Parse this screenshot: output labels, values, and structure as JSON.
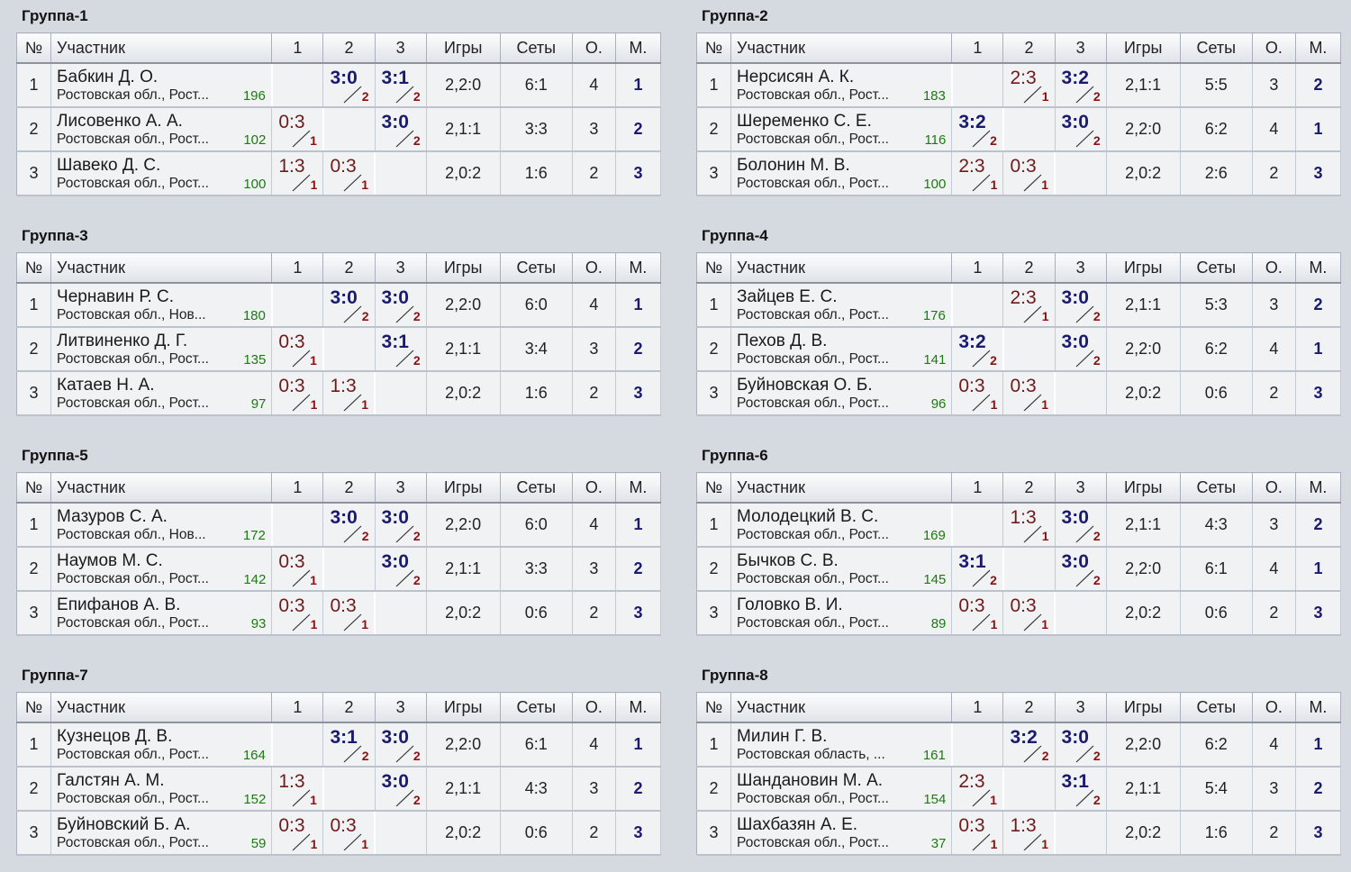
{
  "headers": {
    "num": "№",
    "name": "Участник",
    "c1": "1",
    "c2": "2",
    "c3": "3",
    "games": "Игры",
    "sets": "Сеты",
    "points": "О.",
    "place": "М."
  },
  "groups": [
    {
      "title": "Группа-1",
      "rows": [
        {
          "n": "1",
          "name": "Бабкин Д. О.",
          "city": "Ростовская обл., Рост...",
          "rating": "196",
          "results": [
            null,
            {
              "s": "3:0",
              "p": "2",
              "w": true
            },
            {
              "s": "3:1",
              "p": "2",
              "w": true
            }
          ],
          "games": "2,2:0",
          "sets": "6:1",
          "points": "4",
          "place": "1"
        },
        {
          "n": "2",
          "name": "Лисовенко А. А.",
          "city": "Ростовская обл., Рост...",
          "rating": "102",
          "results": [
            {
              "s": "0:3",
              "p": "1",
              "w": false
            },
            null,
            {
              "s": "3:0",
              "p": "2",
              "w": true
            }
          ],
          "games": "2,1:1",
          "sets": "3:3",
          "points": "3",
          "place": "2"
        },
        {
          "n": "3",
          "name": "Шавеко Д. С.",
          "city": "Ростовская обл., Рост...",
          "rating": "100",
          "results": [
            {
              "s": "1:3",
              "p": "1",
              "w": false
            },
            {
              "s": "0:3",
              "p": "1",
              "w": false
            },
            null
          ],
          "games": "2,0:2",
          "sets": "1:6",
          "points": "2",
          "place": "3"
        }
      ]
    },
    {
      "title": "Группа-2",
      "rows": [
        {
          "n": "1",
          "name": "Нерсисян А. К.",
          "city": "Ростовская обл., Рост...",
          "rating": "183",
          "results": [
            null,
            {
              "s": "2:3",
              "p": "1",
              "w": false
            },
            {
              "s": "3:2",
              "p": "2",
              "w": true
            }
          ],
          "games": "2,1:1",
          "sets": "5:5",
          "points": "3",
          "place": "2"
        },
        {
          "n": "2",
          "name": "Шеременко С. Е.",
          "city": "Ростовская обл., Рост...",
          "rating": "116",
          "results": [
            {
              "s": "3:2",
              "p": "2",
              "w": true
            },
            null,
            {
              "s": "3:0",
              "p": "2",
              "w": true
            }
          ],
          "games": "2,2:0",
          "sets": "6:2",
          "points": "4",
          "place": "1"
        },
        {
          "n": "3",
          "name": "Болонин М. В.",
          "city": "Ростовская обл., Рост...",
          "rating": "100",
          "results": [
            {
              "s": "2:3",
              "p": "1",
              "w": false
            },
            {
              "s": "0:3",
              "p": "1",
              "w": false
            },
            null
          ],
          "games": "2,0:2",
          "sets": "2:6",
          "points": "2",
          "place": "3"
        }
      ]
    },
    {
      "title": "Группа-3",
      "rows": [
        {
          "n": "1",
          "name": "Чернавин Р. С.",
          "city": "Ростовская обл., Нов...",
          "rating": "180",
          "results": [
            null,
            {
              "s": "3:0",
              "p": "2",
              "w": true
            },
            {
              "s": "3:0",
              "p": "2",
              "w": true
            }
          ],
          "games": "2,2:0",
          "sets": "6:0",
          "points": "4",
          "place": "1"
        },
        {
          "n": "2",
          "name": "Литвиненко Д. Г.",
          "city": "Ростовская обл., Рост...",
          "rating": "135",
          "results": [
            {
              "s": "0:3",
              "p": "1",
              "w": false
            },
            null,
            {
              "s": "3:1",
              "p": "2",
              "w": true
            }
          ],
          "games": "2,1:1",
          "sets": "3:4",
          "points": "3",
          "place": "2"
        },
        {
          "n": "3",
          "name": "Катаев Н. А.",
          "city": "Ростовская обл., Рост...",
          "rating": "97",
          "results": [
            {
              "s": "0:3",
              "p": "1",
              "w": false
            },
            {
              "s": "1:3",
              "p": "1",
              "w": false
            },
            null
          ],
          "games": "2,0:2",
          "sets": "1:6",
          "points": "2",
          "place": "3"
        }
      ]
    },
    {
      "title": "Группа-4",
      "rows": [
        {
          "n": "1",
          "name": "Зайцев Е. С.",
          "city": "Ростовская обл., Рост...",
          "rating": "176",
          "results": [
            null,
            {
              "s": "2:3",
              "p": "1",
              "w": false
            },
            {
              "s": "3:0",
              "p": "2",
              "w": true
            }
          ],
          "games": "2,1:1",
          "sets": "5:3",
          "points": "3",
          "place": "2"
        },
        {
          "n": "2",
          "name": "Пехов Д. В.",
          "city": "Ростовская обл., Рост...",
          "rating": "141",
          "results": [
            {
              "s": "3:2",
              "p": "2",
              "w": true
            },
            null,
            {
              "s": "3:0",
              "p": "2",
              "w": true
            }
          ],
          "games": "2,2:0",
          "sets": "6:2",
          "points": "4",
          "place": "1"
        },
        {
          "n": "3",
          "name": "Буйновская О. Б.",
          "city": "Ростовская обл., Рост...",
          "rating": "96",
          "results": [
            {
              "s": "0:3",
              "p": "1",
              "w": false
            },
            {
              "s": "0:3",
              "p": "1",
              "w": false
            },
            null
          ],
          "games": "2,0:2",
          "sets": "0:6",
          "points": "2",
          "place": "3"
        }
      ]
    },
    {
      "title": "Группа-5",
      "rows": [
        {
          "n": "1",
          "name": "Мазуров С. А.",
          "city": "Ростовская обл., Нов...",
          "rating": "172",
          "results": [
            null,
            {
              "s": "3:0",
              "p": "2",
              "w": true
            },
            {
              "s": "3:0",
              "p": "2",
              "w": true
            }
          ],
          "games": "2,2:0",
          "sets": "6:0",
          "points": "4",
          "place": "1"
        },
        {
          "n": "2",
          "name": "Наумов М. С.",
          "city": "Ростовская обл., Рост...",
          "rating": "142",
          "results": [
            {
              "s": "0:3",
              "p": "1",
              "w": false
            },
            null,
            {
              "s": "3:0",
              "p": "2",
              "w": true
            }
          ],
          "games": "2,1:1",
          "sets": "3:3",
          "points": "3",
          "place": "2"
        },
        {
          "n": "3",
          "name": "Епифанов А. В.",
          "city": "Ростовская обл., Рост...",
          "rating": "93",
          "results": [
            {
              "s": "0:3",
              "p": "1",
              "w": false
            },
            {
              "s": "0:3",
              "p": "1",
              "w": false
            },
            null
          ],
          "games": "2,0:2",
          "sets": "0:6",
          "points": "2",
          "place": "3"
        }
      ]
    },
    {
      "title": "Группа-6",
      "rows": [
        {
          "n": "1",
          "name": "Молодецкий В. С.",
          "city": "Ростовская обл., Рост...",
          "rating": "169",
          "results": [
            null,
            {
              "s": "1:3",
              "p": "1",
              "w": false
            },
            {
              "s": "3:0",
              "p": "2",
              "w": true
            }
          ],
          "games": "2,1:1",
          "sets": "4:3",
          "points": "3",
          "place": "2"
        },
        {
          "n": "2",
          "name": "Бычков С. В.",
          "city": "Ростовская обл., Рост...",
          "rating": "145",
          "results": [
            {
              "s": "3:1",
              "p": "2",
              "w": true
            },
            null,
            {
              "s": "3:0",
              "p": "2",
              "w": true
            }
          ],
          "games": "2,2:0",
          "sets": "6:1",
          "points": "4",
          "place": "1"
        },
        {
          "n": "3",
          "name": "Головко В. И.",
          "city": "Ростовская обл., Рост...",
          "rating": "89",
          "results": [
            {
              "s": "0:3",
              "p": "1",
              "w": false
            },
            {
              "s": "0:3",
              "p": "1",
              "w": false
            },
            null
          ],
          "games": "2,0:2",
          "sets": "0:6",
          "points": "2",
          "place": "3"
        }
      ]
    },
    {
      "title": "Группа-7",
      "rows": [
        {
          "n": "1",
          "name": "Кузнецов Д. В.",
          "city": "Ростовская обл., Рост...",
          "rating": "164",
          "results": [
            null,
            {
              "s": "3:1",
              "p": "2",
              "w": true
            },
            {
              "s": "3:0",
              "p": "2",
              "w": true
            }
          ],
          "games": "2,2:0",
          "sets": "6:1",
          "points": "4",
          "place": "1"
        },
        {
          "n": "2",
          "name": "Галстян А. М.",
          "city": "Ростовская обл., Рост...",
          "rating": "152",
          "results": [
            {
              "s": "1:3",
              "p": "1",
              "w": false
            },
            null,
            {
              "s": "3:0",
              "p": "2",
              "w": true
            }
          ],
          "games": "2,1:1",
          "sets": "4:3",
          "points": "3",
          "place": "2"
        },
        {
          "n": "3",
          "name": "Буйновский Б. А.",
          "city": "Ростовская обл., Рост...",
          "rating": "59",
          "results": [
            {
              "s": "0:3",
              "p": "1",
              "w": false
            },
            {
              "s": "0:3",
              "p": "1",
              "w": false
            },
            null
          ],
          "games": "2,0:2",
          "sets": "0:6",
          "points": "2",
          "place": "3"
        }
      ]
    },
    {
      "title": "Группа-8",
      "rows": [
        {
          "n": "1",
          "name": "Милин Г. В.",
          "city": "Ростовская область, ...",
          "rating": "161",
          "results": [
            null,
            {
              "s": "3:2",
              "p": "2",
              "w": true
            },
            {
              "s": "3:0",
              "p": "2",
              "w": true
            }
          ],
          "games": "2,2:0",
          "sets": "6:2",
          "points": "4",
          "place": "1"
        },
        {
          "n": "2",
          "name": "Шандановин М. А.",
          "city": "Ростовская обл., Рост...",
          "rating": "154",
          "results": [
            {
              "s": "2:3",
              "p": "1",
              "w": false
            },
            null,
            {
              "s": "3:1",
              "p": "2",
              "w": true
            }
          ],
          "games": "2,1:1",
          "sets": "5:4",
          "points": "3",
          "place": "2"
        },
        {
          "n": "3",
          "name": "Шахбазян А. Е.",
          "city": "Ростовская обл., Рост...",
          "rating": "37",
          "results": [
            {
              "s": "0:3",
              "p": "1",
              "w": false
            },
            {
              "s": "1:3",
              "p": "1",
              "w": false
            },
            null
          ],
          "games": "2,0:2",
          "sets": "1:6",
          "points": "2",
          "place": "3"
        }
      ]
    }
  ]
}
